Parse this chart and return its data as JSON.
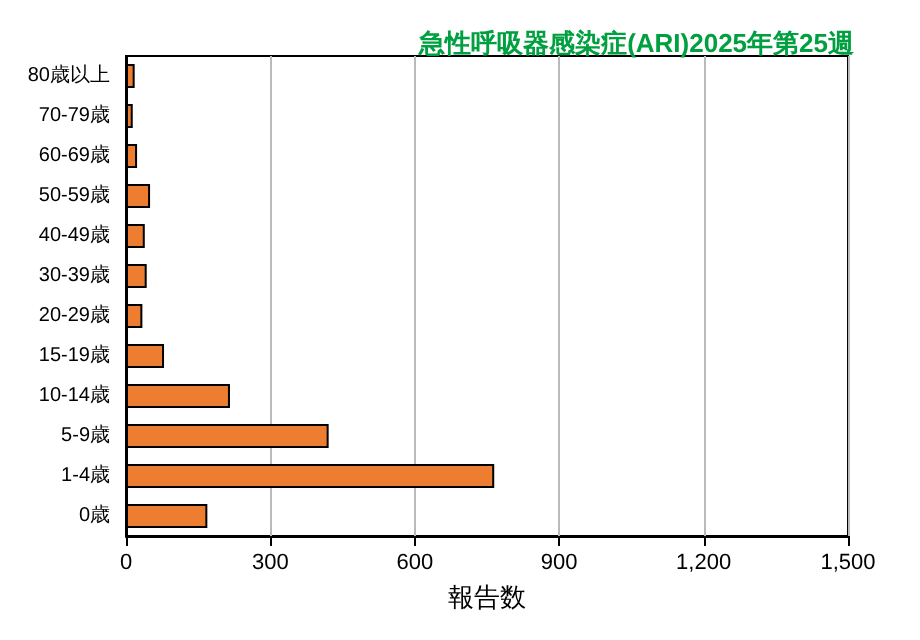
{
  "chart_data": {
    "type": "bar",
    "orientation": "horizontal",
    "title": "急性呼吸器感染症(ARI)2025年第25週",
    "xlabel": "報告数",
    "categories": [
      "80歳以上",
      "70-79歳",
      "60-69歳",
      "50-59歳",
      "40-49歳",
      "30-39歳",
      "20-29歳",
      "15-19歳",
      "10-14歳",
      "5-9歳",
      "1-4歳",
      "0歳"
    ],
    "values": [
      18,
      14,
      23,
      50,
      39,
      43,
      34,
      79,
      216,
      421,
      765,
      169
    ],
    "color": "#ed7d31",
    "xlim": [
      0,
      1500
    ],
    "xticks": [
      0,
      300,
      600,
      900,
      {
        "value": 1200,
        "label": "1,200"
      },
      {
        "value": 1500,
        "label": "1,500"
      }
    ],
    "grid": "x"
  }
}
